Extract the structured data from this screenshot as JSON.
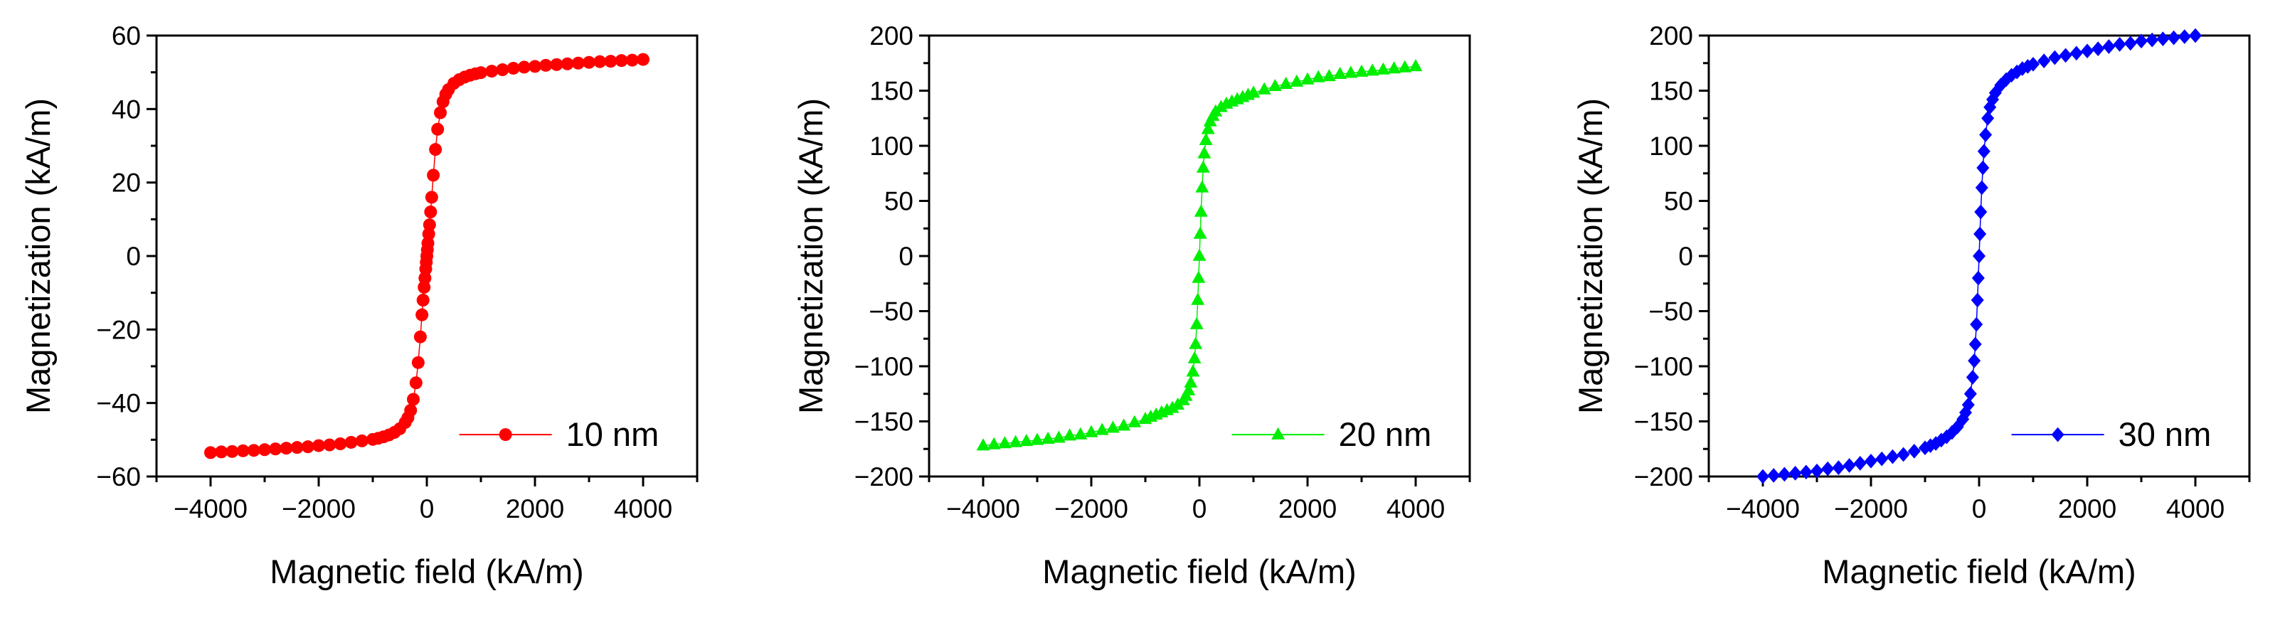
{
  "chart_data": [
    {
      "type": "scatter",
      "marker": "circle",
      "color": "#ff0000",
      "legend": "10 nm",
      "legend_position": "bottom-right",
      "xlabel": "Magnetic field (kA/m)",
      "ylabel": "Magnetization (kA/m)",
      "xlim": [
        -5000,
        5000
      ],
      "ylim": [
        -60,
        60
      ],
      "xticks": [
        -4000,
        -2000,
        0,
        2000,
        4000
      ],
      "xtick_labels": [
        "−4000",
        "−2000",
        "0",
        "2000",
        "4000"
      ],
      "yticks": [
        -60,
        -40,
        -20,
        0,
        20,
        40,
        60
      ],
      "ytick_labels": [
        "−60",
        "−40",
        "−20",
        "0",
        "20",
        "40",
        "60"
      ],
      "x": [
        -4000,
        -3800,
        -3600,
        -3400,
        -3200,
        -3000,
        -2800,
        -2600,
        -2400,
        -2200,
        -2000,
        -1800,
        -1600,
        -1400,
        -1200,
        -1000,
        -900,
        -800,
        -700,
        -600,
        -500,
        -400,
        -350,
        -300,
        -250,
        -200,
        -160,
        -120,
        -90,
        -70,
        -50,
        -35,
        -20,
        -10,
        0,
        10,
        20,
        35,
        50,
        70,
        90,
        120,
        160,
        200,
        250,
        300,
        350,
        400,
        500,
        600,
        700,
        800,
        900,
        1000,
        1200,
        1400,
        1600,
        1800,
        2000,
        2200,
        2400,
        2600,
        2800,
        3000,
        3200,
        3400,
        3600,
        3800,
        4000
      ],
      "y": [
        -53.5,
        -53.3,
        -53.2,
        -53.0,
        -52.9,
        -52.7,
        -52.5,
        -52.3,
        -52.1,
        -51.9,
        -51.6,
        -51.4,
        -51.1,
        -50.7,
        -50.3,
        -49.9,
        -49.6,
        -49.2,
        -48.7,
        -48.0,
        -47.0,
        -45.3,
        -44.0,
        -42.0,
        -39.0,
        -34.5,
        -29.0,
        -22.0,
        -16.0,
        -12.0,
        -8.5,
        -6.0,
        -3.5,
        -1.7,
        0.0,
        1.7,
        3.5,
        6.0,
        8.5,
        12.0,
        16.0,
        22.0,
        29.0,
        34.5,
        39.0,
        42.0,
        44.0,
        45.3,
        47.0,
        48.0,
        48.7,
        49.2,
        49.6,
        49.9,
        50.3,
        50.7,
        51.1,
        51.4,
        51.6,
        51.9,
        52.1,
        52.3,
        52.5,
        52.7,
        52.9,
        53.0,
        53.2,
        53.3,
        53.5
      ]
    },
    {
      "type": "scatter",
      "marker": "triangle",
      "color": "#00ee00",
      "legend": "20 nm",
      "legend_position": "bottom-right",
      "xlabel": "Magnetic field (kA/m)",
      "ylabel": "Magnetization (kA/m)",
      "xlim": [
        -5000,
        5000
      ],
      "ylim": [
        -200,
        200
      ],
      "xticks": [
        -4000,
        -2000,
        0,
        2000,
        4000
      ],
      "xtick_labels": [
        "−4000",
        "−2000",
        "0",
        "2000",
        "4000"
      ],
      "yticks": [
        -200,
        -150,
        -100,
        -50,
        0,
        50,
        100,
        150,
        200
      ],
      "ytick_labels": [
        "−200",
        "−150",
        "−100",
        "−50",
        "0",
        "50",
        "100",
        "150",
        "200"
      ],
      "x": [
        -4000,
        -3800,
        -3600,
        -3400,
        -3200,
        -3000,
        -2800,
        -2600,
        -2400,
        -2200,
        -2000,
        -1800,
        -1600,
        -1400,
        -1200,
        -1000,
        -900,
        -800,
        -700,
        -600,
        -500,
        -400,
        -300,
        -250,
        -200,
        -160,
        -120,
        -90,
        -70,
        -50,
        -30,
        -15,
        0,
        15,
        30,
        50,
        70,
        90,
        120,
        160,
        200,
        250,
        300,
        400,
        500,
        600,
        700,
        800,
        900,
        1000,
        1200,
        1400,
        1600,
        1800,
        2000,
        2200,
        2400,
        2600,
        2800,
        3000,
        3200,
        3400,
        3600,
        3800,
        4000
      ],
      "y": [
        -172,
        -171,
        -170,
        -169,
        -168,
        -167,
        -166,
        -165,
        -163,
        -162,
        -160,
        -158,
        -156,
        -154,
        -151,
        -148,
        -146,
        -144,
        -142,
        -140,
        -138,
        -135,
        -131,
        -127,
        -122,
        -115,
        -105,
        -93,
        -80,
        -62,
        -40,
        -20,
        0,
        20,
        40,
        62,
        80,
        93,
        105,
        115,
        122,
        127,
        131,
        135,
        138,
        140,
        142,
        144,
        146,
        148,
        151,
        154,
        156,
        158,
        160,
        162,
        163,
        165,
        166,
        167,
        168,
        169,
        170,
        171,
        172
      ]
    },
    {
      "type": "scatter",
      "marker": "diamond",
      "color": "#0000ff",
      "legend": "30 nm",
      "legend_position": "bottom-right",
      "xlabel": "Magnetic field (kA/m)",
      "ylabel": "Magnetization (kA/m)",
      "xlim": [
        -5000,
        5000
      ],
      "ylim": [
        -200,
        200
      ],
      "xticks": [
        -4000,
        -2000,
        0,
        2000,
        4000
      ],
      "xtick_labels": [
        "−4000",
        "−2000",
        "0",
        "2000",
        "4000"
      ],
      "yticks": [
        -200,
        -150,
        -100,
        -50,
        0,
        50,
        100,
        150,
        200
      ],
      "ytick_labels": [
        "−200",
        "−150",
        "−100",
        "−50",
        "0",
        "50",
        "100",
        "150",
        "200"
      ],
      "x": [
        -4000,
        -3800,
        -3600,
        -3400,
        -3200,
        -3000,
        -2800,
        -2600,
        -2400,
        -2200,
        -2000,
        -1800,
        -1600,
        -1400,
        -1200,
        -1000,
        -900,
        -800,
        -700,
        -600,
        -500,
        -400,
        -300,
        -250,
        -200,
        -160,
        -120,
        -90,
        -70,
        -50,
        -30,
        -15,
        0,
        15,
        30,
        50,
        70,
        90,
        120,
        160,
        200,
        250,
        300,
        400,
        500,
        600,
        700,
        800,
        900,
        1000,
        1200,
        1400,
        1600,
        1800,
        2000,
        2200,
        2400,
        2600,
        2800,
        3000,
        3200,
        3400,
        3600,
        3800,
        4000
      ],
      "y": [
        -200,
        -199,
        -198,
        -197,
        -196,
        -195,
        -193,
        -192,
        -190,
        -188,
        -186,
        -184,
        -182,
        -180,
        -177,
        -174,
        -172,
        -170,
        -167,
        -164,
        -160,
        -155,
        -148,
        -142,
        -135,
        -125,
        -110,
        -95,
        -80,
        -62,
        -40,
        -20,
        0,
        20,
        40,
        62,
        80,
        95,
        110,
        125,
        135,
        142,
        148,
        155,
        160,
        164,
        167,
        170,
        172,
        174,
        177,
        180,
        182,
        184,
        186,
        188,
        190,
        192,
        193,
        195,
        196,
        197,
        198,
        199,
        200
      ]
    }
  ]
}
